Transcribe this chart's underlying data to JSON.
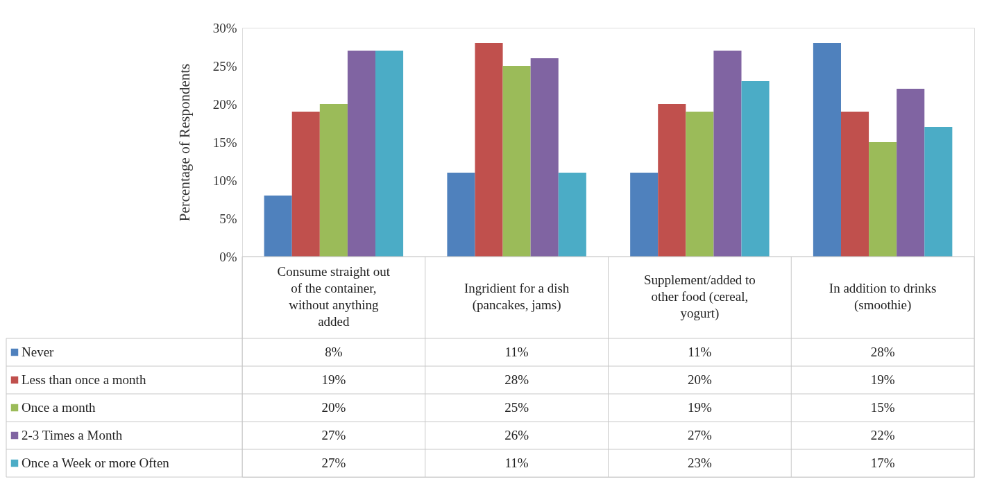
{
  "chart_data": {
    "type": "bar",
    "ylabel": "Percentage of Respondents",
    "categories": [
      "Consume straight out of the container, without anything added",
      "Ingridient for a dish (pancakes, jams)",
      "Supplement/added to other food (cereal, yogurt)",
      "In addition to drinks (smoothie)"
    ],
    "series": [
      {
        "name": "Never",
        "color": "#4f81bd",
        "values": [
          8,
          11,
          11,
          28
        ],
        "value_labels": [
          "8%",
          "11%",
          "11%",
          "28%"
        ]
      },
      {
        "name": "Less than once a month",
        "color": "#c0504d",
        "values": [
          19,
          28,
          20,
          19
        ],
        "value_labels": [
          "19%",
          "28%",
          "20%",
          "19%"
        ]
      },
      {
        "name": "Once a month",
        "color": "#9bbb59",
        "values": [
          20,
          25,
          19,
          15
        ],
        "value_labels": [
          "20%",
          "25%",
          "19%",
          "15%"
        ]
      },
      {
        "name": "2-3 Times a Month",
        "color": "#8064a2",
        "values": [
          27,
          26,
          27,
          22
        ],
        "value_labels": [
          "27%",
          "26%",
          "27%",
          "22%"
        ]
      },
      {
        "name": "Once a Week or more Often",
        "color": "#4bacc6",
        "values": [
          27,
          11,
          23,
          17
        ],
        "value_labels": [
          "27%",
          "11%",
          "23%",
          "17%"
        ]
      }
    ],
    "ylim": [
      0,
      30
    ],
    "yticks": [
      {
        "value": 0,
        "label": "0%"
      },
      {
        "value": 5,
        "label": "5%"
      },
      {
        "value": 10,
        "label": "10%"
      },
      {
        "value": 15,
        "label": "15%"
      },
      {
        "value": 20,
        "label": "20%"
      },
      {
        "value": 25,
        "label": "25%"
      },
      {
        "value": 30,
        "label": "30%"
      }
    ],
    "grid": false,
    "legend": "bottom"
  }
}
